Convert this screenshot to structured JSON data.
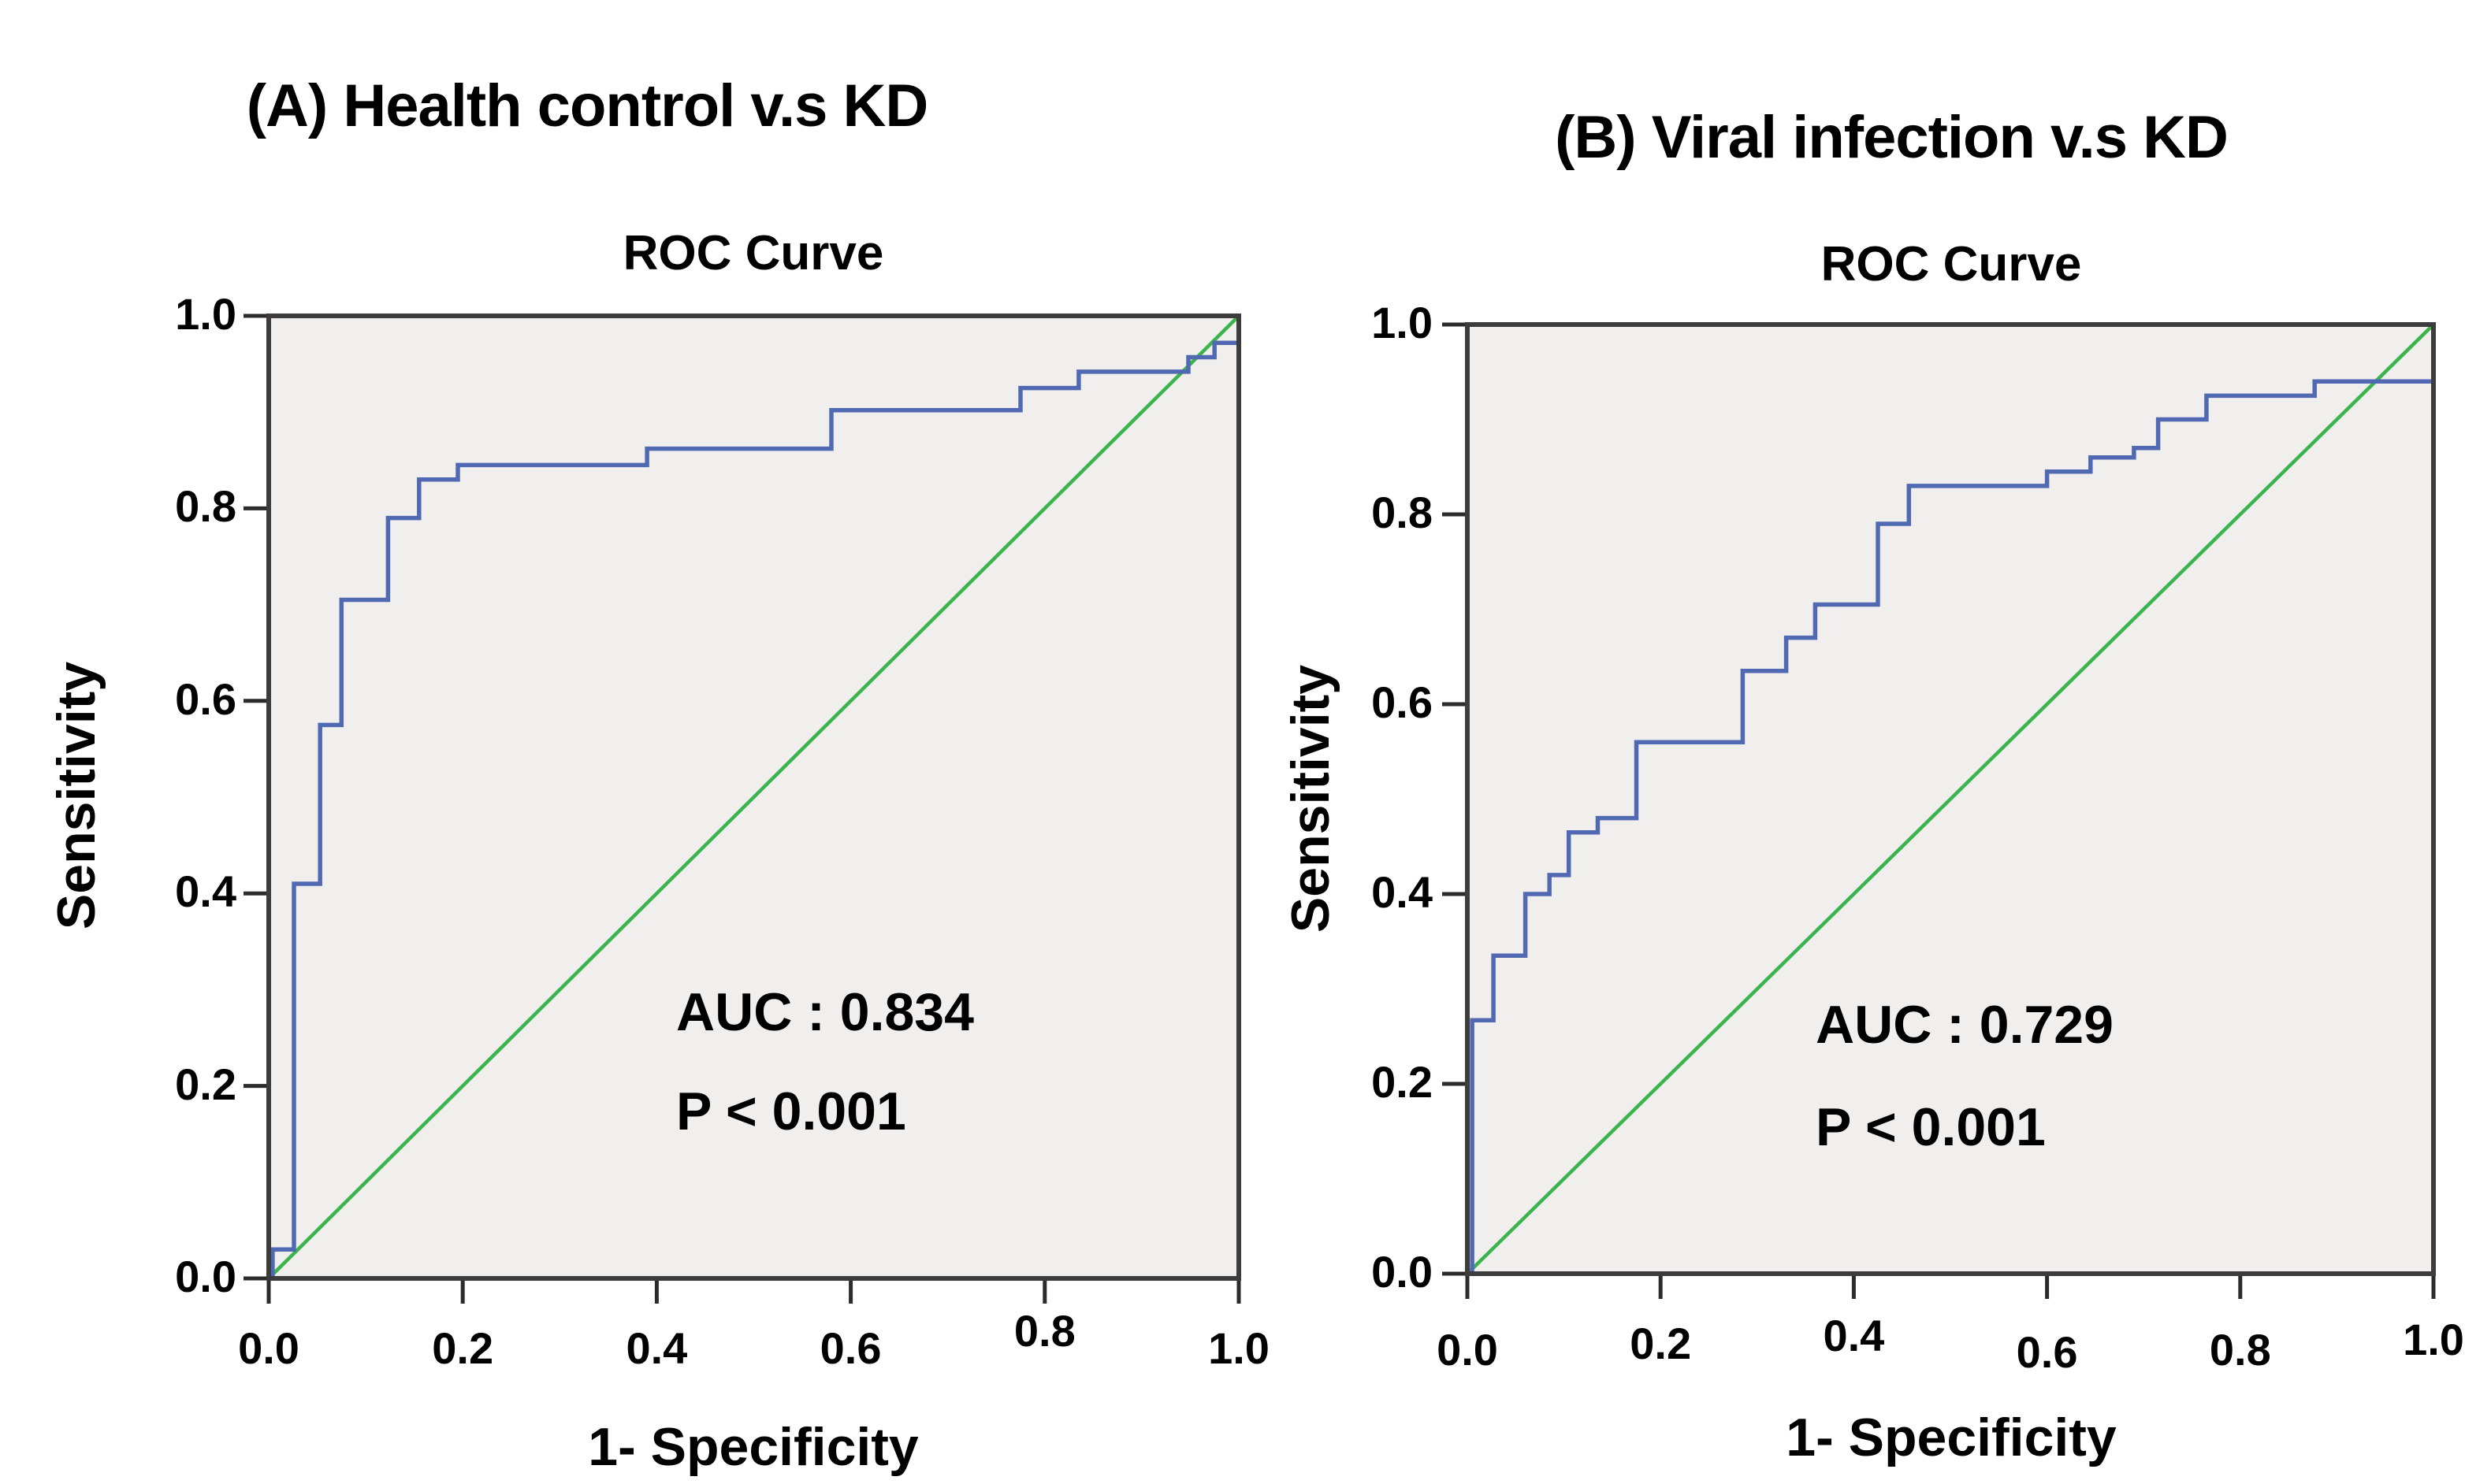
{
  "colors": {
    "curve_blue": "#5069b2",
    "diagonal_green": "#3bb44e",
    "plot_bg": "#f0efed",
    "plot_border": "#3c3c3c",
    "tick_mark": "#2b2b2b",
    "text": "#000000",
    "page_bg": "#ffffff"
  },
  "panels": [
    {
      "label": "A",
      "panel_title": "(A) Health control v.s KD",
      "chart_title": "ROC Curve",
      "y_axis_label": "Sensitivity",
      "x_axis_label": "1- Specificity",
      "auc_text": "AUC : 0.834",
      "p_text": "P < 0.001",
      "x_tick_labels": [
        "0.0",
        "0.2",
        "0.4",
        "0.6",
        "0.8",
        "1.0"
      ],
      "y_tick_labels": [
        "0.0",
        "0.2",
        "0.4",
        "0.6",
        "0.8",
        "1.0"
      ]
    },
    {
      "label": "B",
      "panel_title": "(B) Viral infection v.s KD",
      "chart_title": "ROC Curve",
      "y_axis_label": "Sensitivity",
      "x_axis_label": "1- Specificity",
      "auc_text": "AUC : 0.729",
      "p_text": "P < 0.001",
      "x_tick_labels": [
        "0.0",
        "0.2",
        "0.4",
        "0.6",
        "0.8",
        "1.0"
      ],
      "y_tick_labels": [
        "0.0",
        "0.2",
        "0.4",
        "0.6",
        "0.8",
        "1.0"
      ]
    }
  ],
  "chart_data": [
    {
      "type": "line",
      "title": "ROC Curve",
      "xlabel": "1- Specificity",
      "ylabel": "Sensitivity",
      "xlim": [
        0,
        1
      ],
      "ylim": [
        0,
        1
      ],
      "x_ticks": [
        0,
        0.2,
        0.4,
        0.6,
        0.8,
        1.0
      ],
      "y_ticks": [
        0,
        0.2,
        0.4,
        0.6,
        0.8,
        1.0
      ],
      "grid": false,
      "auc": 0.834,
      "p_value": "P < 0.001",
      "series": [
        {
          "name": "ROC curve (Health control vs KD)",
          "style": "step",
          "points": [
            [
              0,
              0
            ],
            [
              0.004,
              0
            ],
            [
              0.004,
              0.03
            ],
            [
              0.026,
              0.03
            ],
            [
              0.026,
              0.41
            ],
            [
              0.053,
              0.41
            ],
            [
              0.053,
              0.575
            ],
            [
              0.075,
              0.575
            ],
            [
              0.075,
              0.705
            ],
            [
              0.123,
              0.705
            ],
            [
              0.123,
              0.79
            ],
            [
              0.155,
              0.79
            ],
            [
              0.155,
              0.83
            ],
            [
              0.195,
              0.83
            ],
            [
              0.195,
              0.845
            ],
            [
              0.39,
              0.845
            ],
            [
              0.39,
              0.862
            ],
            [
              0.58,
              0.862
            ],
            [
              0.58,
              0.902
            ],
            [
              0.775,
              0.902
            ],
            [
              0.775,
              0.925
            ],
            [
              0.835,
              0.925
            ],
            [
              0.835,
              0.942
            ],
            [
              0.948,
              0.942
            ],
            [
              0.948,
              0.957
            ],
            [
              0.975,
              0.957
            ],
            [
              0.975,
              0.972
            ],
            [
              1,
              0.972
            ],
            [
              1,
              1
            ]
          ]
        },
        {
          "name": "Reference diagonal",
          "style": "straight",
          "points": [
            [
              0,
              0
            ],
            [
              1,
              1
            ]
          ]
        }
      ]
    },
    {
      "type": "line",
      "title": "ROC Curve",
      "xlabel": "1- Specificity",
      "ylabel": "Sensitivity",
      "xlim": [
        0,
        1
      ],
      "ylim": [
        0,
        1
      ],
      "x_ticks": [
        0,
        0.2,
        0.4,
        0.6,
        0.8,
        1.0
      ],
      "y_ticks": [
        0,
        0.2,
        0.4,
        0.6,
        0.8,
        1.0
      ],
      "grid": false,
      "auc": 0.729,
      "p_value": "P < 0.001",
      "series": [
        {
          "name": "ROC curve (Viral infection vs KD)",
          "style": "step",
          "points": [
            [
              0,
              0
            ],
            [
              0.005,
              0
            ],
            [
              0.005,
              0.267
            ],
            [
              0.027,
              0.267
            ],
            [
              0.027,
              0.335
            ],
            [
              0.06,
              0.335
            ],
            [
              0.06,
              0.4
            ],
            [
              0.085,
              0.4
            ],
            [
              0.085,
              0.42
            ],
            [
              0.105,
              0.42
            ],
            [
              0.105,
              0.465
            ],
            [
              0.135,
              0.465
            ],
            [
              0.135,
              0.48
            ],
            [
              0.175,
              0.48
            ],
            [
              0.175,
              0.56
            ],
            [
              0.285,
              0.56
            ],
            [
              0.285,
              0.635
            ],
            [
              0.33,
              0.635
            ],
            [
              0.33,
              0.67
            ],
            [
              0.36,
              0.67
            ],
            [
              0.36,
              0.705
            ],
            [
              0.425,
              0.705
            ],
            [
              0.425,
              0.79
            ],
            [
              0.457,
              0.79
            ],
            [
              0.457,
              0.83
            ],
            [
              0.6,
              0.83
            ],
            [
              0.6,
              0.845
            ],
            [
              0.645,
              0.845
            ],
            [
              0.645,
              0.86
            ],
            [
              0.69,
              0.86
            ],
            [
              0.69,
              0.87
            ],
            [
              0.715,
              0.87
            ],
            [
              0.715,
              0.9
            ],
            [
              0.765,
              0.9
            ],
            [
              0.765,
              0.925
            ],
            [
              0.877,
              0.925
            ],
            [
              0.877,
              0.94
            ],
            [
              1,
              0.94
            ],
            [
              1,
              1
            ]
          ]
        },
        {
          "name": "Reference diagonal",
          "style": "straight",
          "points": [
            [
              0,
              0
            ],
            [
              1,
              1
            ]
          ]
        }
      ]
    }
  ]
}
